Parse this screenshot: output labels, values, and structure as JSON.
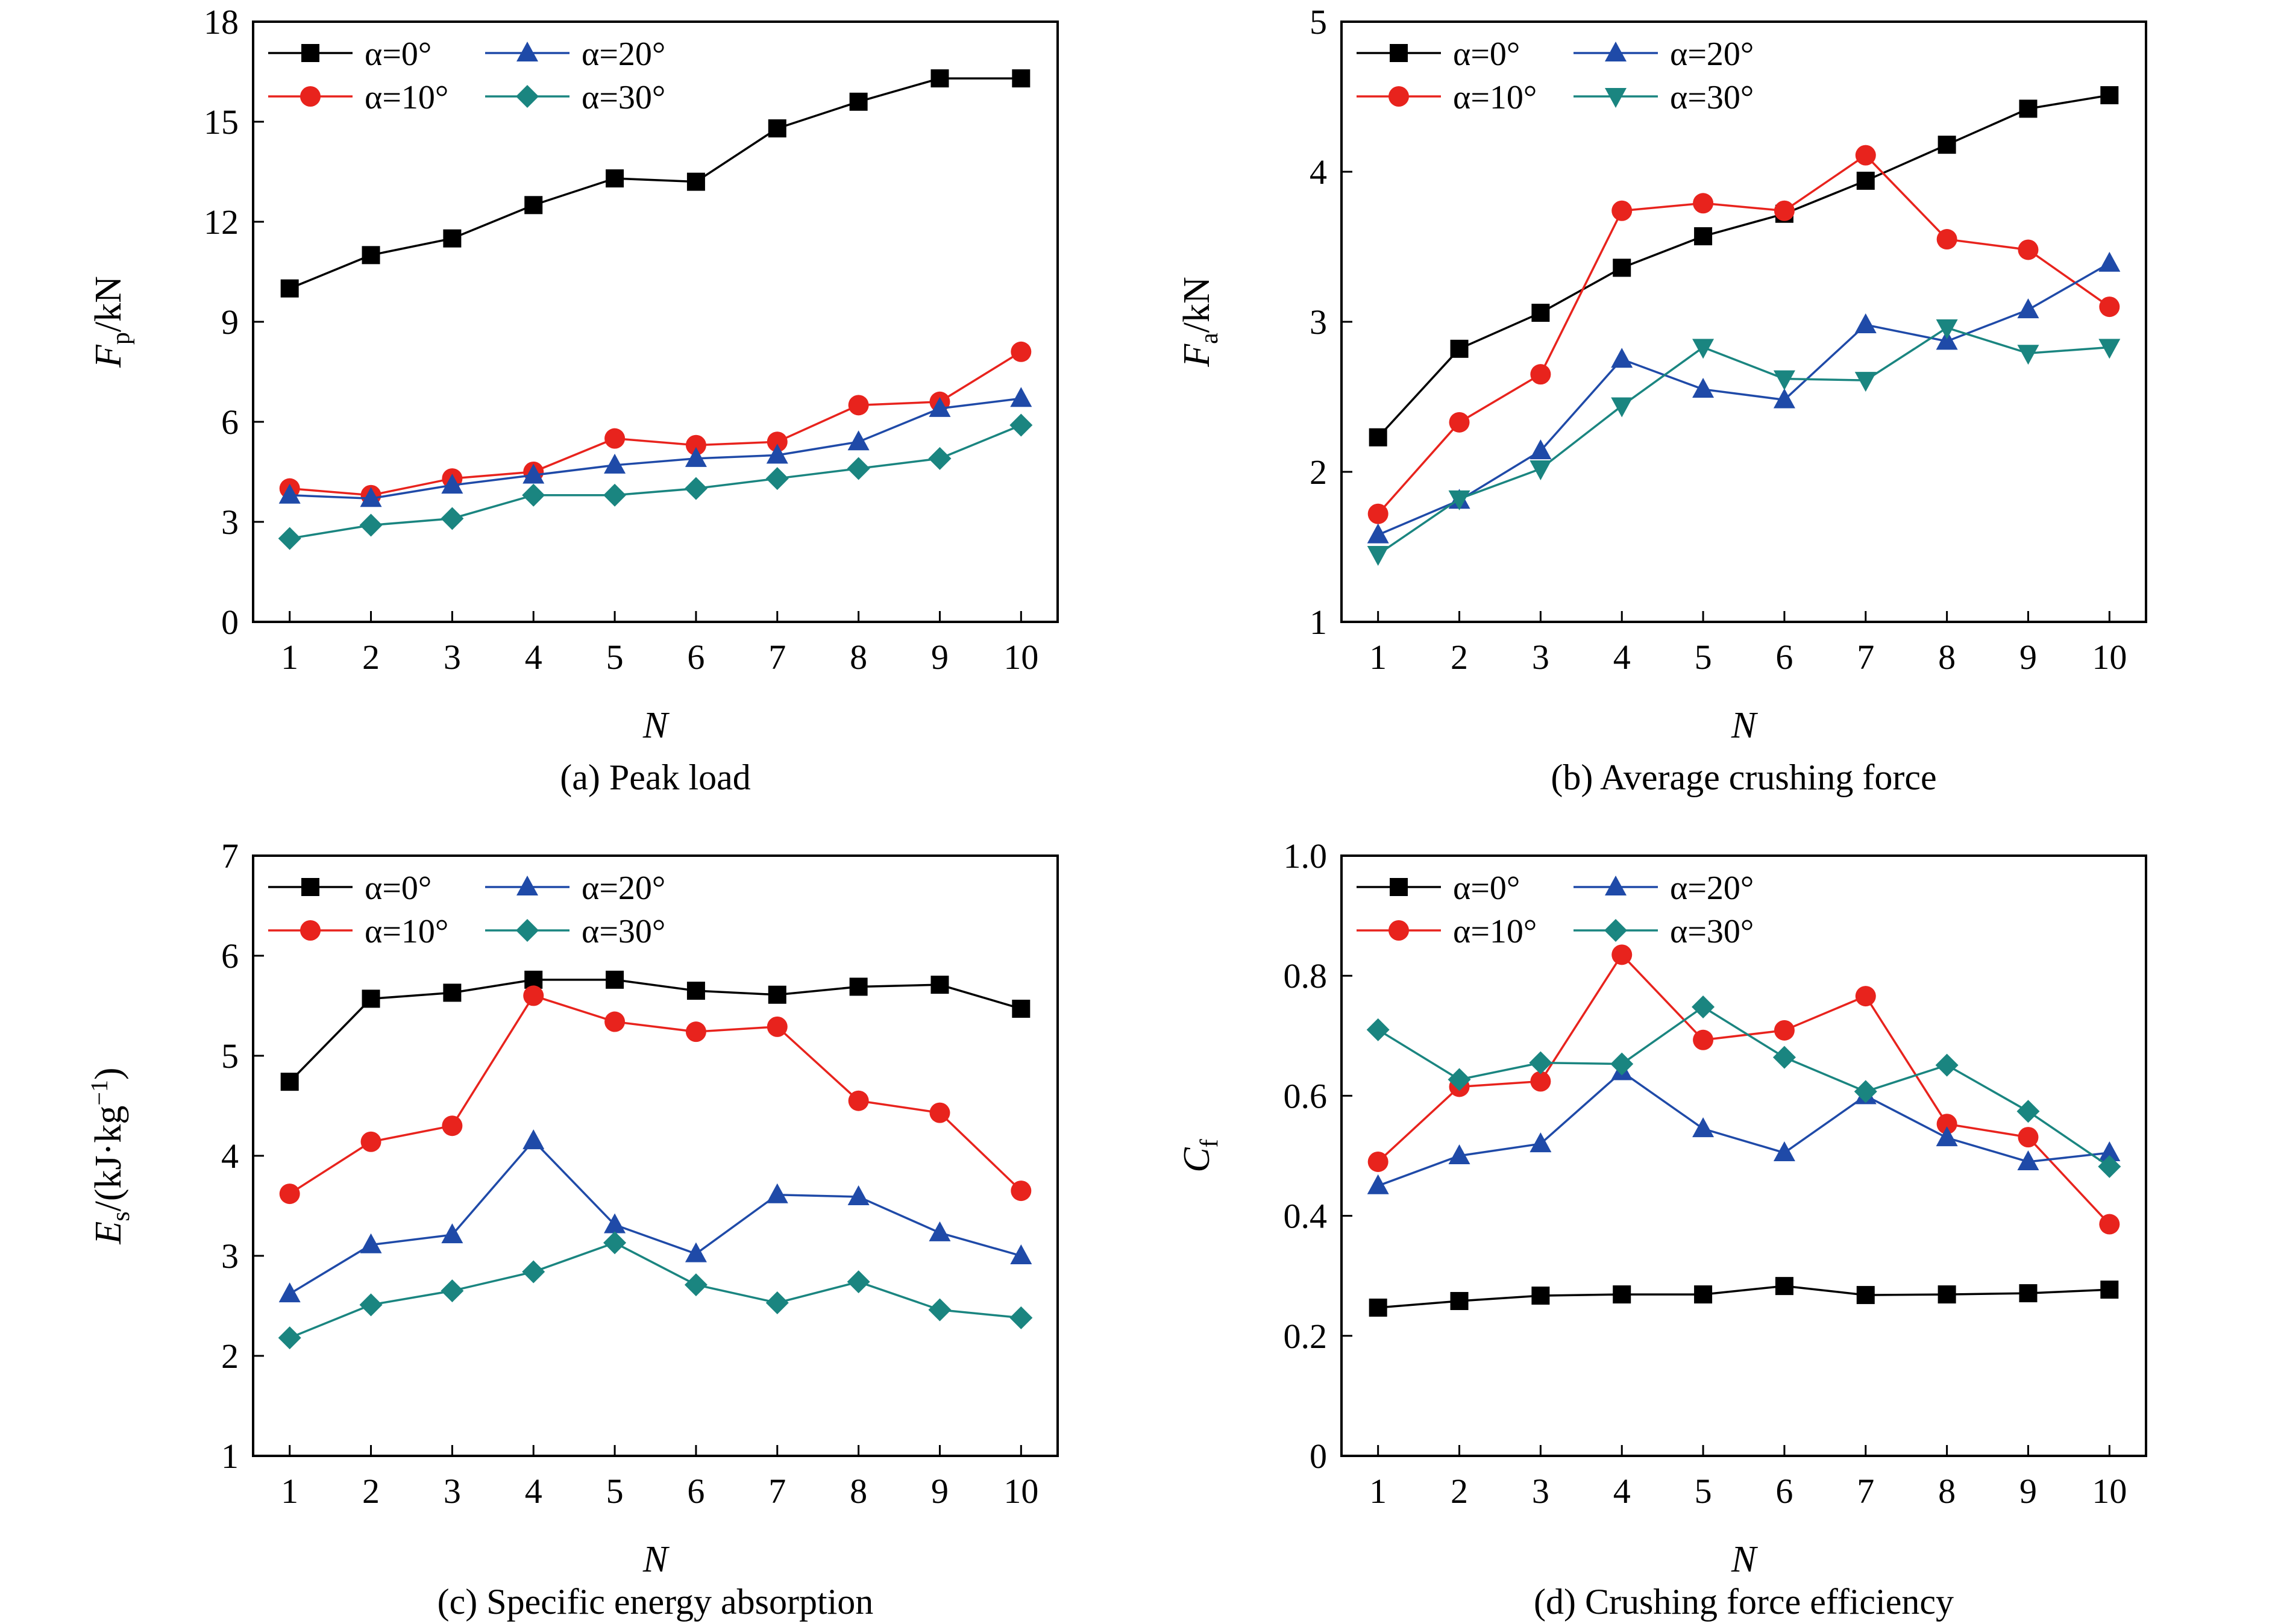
{
  "chart_data": [
    {
      "type": "line",
      "caption": "(a) Peak load",
      "ylabel_main": "F",
      "ylabel_sub": "p",
      "ylabel_suffix": "/kN",
      "xlabel": "N",
      "x": [
        1,
        2,
        3,
        4,
        5,
        6,
        7,
        8,
        9,
        10
      ],
      "ylim": [
        0,
        18
      ],
      "yticks": [
        0,
        3,
        6,
        9,
        12,
        15,
        18
      ],
      "legend_position": "top-left",
      "series": [
        {
          "name": "α=0°",
          "marker": "square",
          "color": "#000000",
          "values": [
            10.0,
            11.0,
            11.5,
            12.5,
            13.3,
            13.2,
            14.8,
            15.6,
            16.3,
            16.3
          ]
        },
        {
          "name": "α=10°",
          "marker": "circle",
          "color": "#e8231d",
          "values": [
            4.0,
            3.8,
            4.3,
            4.5,
            5.5,
            5.3,
            5.4,
            6.5,
            6.6,
            8.1
          ]
        },
        {
          "name": "α=20°",
          "marker": "triangle-up",
          "color": "#1f4aa8",
          "values": [
            3.8,
            3.7,
            4.1,
            4.4,
            4.7,
            4.9,
            5.0,
            5.4,
            6.4,
            6.7
          ]
        },
        {
          "name": "α=30°",
          "marker": "diamond",
          "color": "#1a8580",
          "values": [
            2.5,
            2.9,
            3.1,
            3.8,
            3.8,
            4.0,
            4.3,
            4.6,
            4.9,
            5.9
          ]
        }
      ]
    },
    {
      "type": "line",
      "caption": "(b) Average crushing force",
      "ylabel_main": "F",
      "ylabel_sub": "a",
      "ylabel_suffix": "/kN",
      "xlabel": "N",
      "x": [
        1,
        2,
        3,
        4,
        5,
        6,
        7,
        8,
        9,
        10
      ],
      "ylim": [
        1,
        5
      ],
      "yticks": [
        1,
        2,
        3,
        4,
        5
      ],
      "legend_position": "top-left",
      "series": [
        {
          "name": "α=0°",
          "marker": "square",
          "color": "#000000",
          "values": [
            2.23,
            2.82,
            3.06,
            3.36,
            3.57,
            3.72,
            3.94,
            4.18,
            4.42,
            4.51
          ]
        },
        {
          "name": "α=10°",
          "marker": "circle",
          "color": "#e8231d",
          "values": [
            1.72,
            2.33,
            2.65,
            3.74,
            3.79,
            3.74,
            4.11,
            3.55,
            3.48,
            3.1
          ]
        },
        {
          "name": "α=20°",
          "marker": "triangle-up",
          "color": "#1f4aa8",
          "values": [
            1.58,
            1.81,
            2.14,
            2.75,
            2.55,
            2.48,
            2.98,
            2.87,
            3.08,
            3.39
          ]
        },
        {
          "name": "α=30°",
          "marker": "triangle-down",
          "color": "#1a8580",
          "values": [
            1.45,
            1.82,
            2.02,
            2.44,
            2.83,
            2.62,
            2.61,
            2.96,
            2.79,
            2.83
          ]
        }
      ]
    },
    {
      "type": "line",
      "caption": "(c) Specific energy absorption",
      "ylabel_main": "E",
      "ylabel_sub": "s",
      "ylabel_suffix": "/(kJ·kg",
      "ylabel_sup": "−1",
      "ylabel_close": ")",
      "xlabel": "N",
      "x": [
        1,
        2,
        3,
        4,
        5,
        6,
        7,
        8,
        9,
        10
      ],
      "ylim": [
        1,
        7
      ],
      "yticks": [
        1,
        2,
        3,
        4,
        5,
        6,
        7
      ],
      "legend_position": "top-left",
      "series": [
        {
          "name": "α=0°",
          "marker": "square",
          "color": "#000000",
          "values": [
            4.74,
            5.57,
            5.63,
            5.76,
            5.76,
            5.65,
            5.61,
            5.69,
            5.71,
            5.47
          ]
        },
        {
          "name": "α=10°",
          "marker": "circle",
          "color": "#e8231d",
          "values": [
            3.62,
            4.14,
            4.3,
            5.6,
            5.34,
            5.24,
            5.29,
            4.55,
            4.43,
            3.65
          ]
        },
        {
          "name": "α=20°",
          "marker": "triangle-up",
          "color": "#1f4aa8",
          "values": [
            2.62,
            3.11,
            3.21,
            4.15,
            3.31,
            3.02,
            3.61,
            3.59,
            3.23,
            3.0
          ]
        },
        {
          "name": "α=30°",
          "marker": "diamond",
          "color": "#1a8580",
          "values": [
            2.18,
            2.51,
            2.65,
            2.84,
            3.13,
            2.71,
            2.53,
            2.74,
            2.46,
            2.38
          ]
        }
      ]
    },
    {
      "type": "line",
      "caption": "(d) Crushing force efficiency",
      "ylabel_main": "C",
      "ylabel_sub": "f",
      "ylabel_suffix": "",
      "xlabel": "N",
      "x": [
        1,
        2,
        3,
        4,
        5,
        6,
        7,
        8,
        9,
        10
      ],
      "ylim": [
        0,
        1.0
      ],
      "yticks": [
        0,
        0.2,
        0.4,
        0.6,
        0.8,
        1.0
      ],
      "ytick_labels": [
        "0",
        "0.2",
        "0.4",
        "0.6",
        "0.8",
        "1.0"
      ],
      "legend_position": "top-left",
      "series": [
        {
          "name": "α=0°",
          "marker": "square",
          "color": "#000000",
          "values": [
            0.247,
            0.258,
            0.267,
            0.269,
            0.269,
            0.283,
            0.268,
            0.269,
            0.271,
            0.277
          ]
        },
        {
          "name": "α=10°",
          "marker": "circle",
          "color": "#e8231d",
          "values": [
            0.49,
            0.615,
            0.624,
            0.835,
            0.693,
            0.709,
            0.766,
            0.553,
            0.531,
            0.386
          ]
        },
        {
          "name": "α=20°",
          "marker": "triangle-up",
          "color": "#1f4aa8",
          "values": [
            0.45,
            0.5,
            0.52,
            0.64,
            0.545,
            0.505,
            0.6,
            0.53,
            0.49,
            0.505
          ]
        },
        {
          "name": "α=30°",
          "marker": "diamond",
          "color": "#1a8580",
          "values": [
            0.71,
            0.627,
            0.655,
            0.653,
            0.748,
            0.664,
            0.607,
            0.651,
            0.574,
            0.482
          ]
        }
      ]
    }
  ]
}
